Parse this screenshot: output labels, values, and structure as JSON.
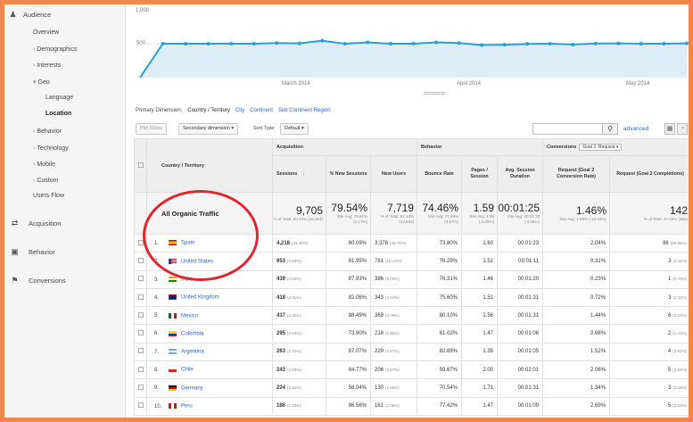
{
  "sidebar": {
    "audience": "Audience",
    "items": {
      "overview": "Overview",
      "demographics": "Demographics",
      "interests": "Interests",
      "geo": "Geo",
      "language": "Language",
      "location": "Location",
      "behavior_sub": "Behavior",
      "technology": "Technology",
      "mobile": "Mobile",
      "custom": "Custom",
      "users_flow": "Users Flow"
    },
    "acquisition": "Acquisition",
    "behavior": "Behavior",
    "conversions": "Conversions"
  },
  "chart_data": {
    "type": "line",
    "ymax_label": "1,000",
    "ymid_label": "500",
    "x_labels": [
      "March 2014",
      "April 2014",
      "May 2014"
    ],
    "values": [
      0,
      500,
      500,
      500,
      500,
      500,
      510,
      505,
      545,
      500,
      520,
      500,
      500,
      520,
      510,
      480,
      485,
      498,
      500,
      488,
      503,
      505,
      500,
      500,
      505
    ],
    "ylim": [
      0,
      1000
    ],
    "color": "#2a9fd6"
  },
  "primary_dimension": {
    "label": "Primary Dimension:",
    "current": "Country / Territory",
    "links": [
      "City",
      "Continent",
      "Sub Continent Region"
    ]
  },
  "toolbar": {
    "plot_rows": "Plot Rows",
    "secondary_dimension": "Secondary dimension",
    "sort_type_label": "Sort Type:",
    "sort_default": "Default",
    "advanced": "advanced"
  },
  "table": {
    "group_acquisition": "Acquisition",
    "group_behavior": "Behavior",
    "group_conversions": "Conversions",
    "goal_select": "Goal 2: Request",
    "col_country": "Country / Territory",
    "col_sessions": "Sessions",
    "col_new_sessions": "% New Sessions",
    "col_new_users": "New Users",
    "col_bounce": "Bounce Rate",
    "col_pages": "Pages / Session",
    "col_duration": "Avg. Session Duration",
    "col_conv_rate": "Request (Goal 2 Conversion Rate)",
    "col_completions": "Request (Goal 2 Completions)",
    "totals": {
      "label": "All Organic Traffic",
      "sessions": "9,705",
      "sessions_sub": "% of Total: 60.42% (16,061)",
      "new_sessions": "79.54%",
      "new_sessions_sub": "Site Avg: 78.61% (1.17%)",
      "new_users": "7,719",
      "new_users_sub": "% of Total: 61.14% (12,626)",
      "bounce": "74.46%",
      "bounce_sub": "Site Avg: 71.69% (3.87%)",
      "pages": "1.59",
      "pages_sub": "Site Avg: 1.66 (-4.05%)",
      "duration": "00:01:25",
      "duration_sub": "Site Avg: 00:01:29 (-3.66%)",
      "conv_rate": "1.46%",
      "conv_rate_sub": "Site Avg: 1.89% (-22.19%)",
      "completions": "142",
      "completions_sub": "% of Total: 47.02% (302)"
    },
    "rows": [
      {
        "n": "1.",
        "country": "Spain",
        "flag": "spain-flag",
        "sessions": "4,218",
        "sessions_pct": "(43.46%)",
        "new_sessions": "80.09%",
        "new_users": "3,378",
        "new_users_pct": "(43.76%)",
        "bounce": "73.80%",
        "pages": "1.60",
        "duration": "00:01:23",
        "conv_rate": "2.04%",
        "completions": "86",
        "completions_pct": "(60.56%)"
      },
      {
        "n": "2.",
        "country": "United States",
        "flag": "us-flag",
        "sessions": "953",
        "sessions_pct": "(9.82%)",
        "new_sessions": "81.95%",
        "new_users": "781",
        "new_users_pct": "(10.12%)",
        "bounce": "76.29%",
        "pages": "1.51",
        "duration": "00:01:11",
        "conv_rate": "0.31%",
        "completions": "3",
        "completions_pct": "(2.11%)"
      },
      {
        "n": "3.",
        "country": "India",
        "flag": "india-flag",
        "sessions": "439",
        "sessions_pct": "(4.52%)",
        "new_sessions": "87.93%",
        "new_users": "386",
        "new_users_pct": "(5.00%)",
        "bounce": "76.31%",
        "pages": "1.46",
        "duration": "00:01:20",
        "conv_rate": "0.23%",
        "completions": "1",
        "completions_pct": "(0.70%)"
      },
      {
        "n": "4.",
        "country": "United Kingdom",
        "flag": "uk-flag",
        "sessions": "418",
        "sessions_pct": "(4.31%)",
        "new_sessions": "82.06%",
        "new_users": "343",
        "new_users_pct": "(4.44%)",
        "bounce": "75.60%",
        "pages": "1.51",
        "duration": "00:01:31",
        "conv_rate": "0.72%",
        "completions": "3",
        "completions_pct": "(2.11%)"
      },
      {
        "n": "5.",
        "country": "Mexico",
        "flag": "mexico-flag",
        "sessions": "417",
        "sessions_pct": "(4.30%)",
        "new_sessions": "88.49%",
        "new_users": "369",
        "new_users_pct": "(4.78%)",
        "bounce": "80.10%",
        "pages": "1.56",
        "duration": "00:01:31",
        "conv_rate": "1.44%",
        "completions": "6",
        "completions_pct": "(4.23%)"
      },
      {
        "n": "6.",
        "country": "Colombia",
        "flag": "colombia-flag",
        "sessions": "295",
        "sessions_pct": "(3.04%)",
        "new_sessions": "73.90%",
        "new_users": "218",
        "new_users_pct": "(2.82%)",
        "bounce": "81.02%",
        "pages": "1.47",
        "duration": "00:01:06",
        "conv_rate": "0.68%",
        "completions": "2",
        "completions_pct": "(1.41%)"
      },
      {
        "n": "7.",
        "country": "Argentina",
        "flag": "argentina-flag",
        "sessions": "263",
        "sessions_pct": "(2.71%)",
        "new_sessions": "87.07%",
        "new_users": "229",
        "new_users_pct": "(2.97%)",
        "bounce": "82.89%",
        "pages": "1.35",
        "duration": "00:01:05",
        "conv_rate": "1.52%",
        "completions": "4",
        "completions_pct": "(2.82%)"
      },
      {
        "n": "8.",
        "country": "Chile",
        "flag": "chile-flag",
        "sessions": "243",
        "sessions_pct": "(2.50%)",
        "new_sessions": "84.77%",
        "new_users": "206",
        "new_users_pct": "(2.67%)",
        "bounce": "59.67%",
        "pages": "2.00",
        "duration": "00:02:01",
        "conv_rate": "2.06%",
        "completions": "5",
        "completions_pct": "(3.52%)"
      },
      {
        "n": "9.",
        "country": "Germany",
        "flag": "germany-flag",
        "sessions": "224",
        "sessions_pct": "(2.31%)",
        "new_sessions": "58.04%",
        "new_users": "130",
        "new_users_pct": "(1.68%)",
        "bounce": "70.54%",
        "pages": "1.71",
        "duration": "00:01:31",
        "conv_rate": "1.34%",
        "completions": "3",
        "completions_pct": "(2.11%)"
      },
      {
        "n": "10.",
        "country": "Peru",
        "flag": "peru-flag",
        "sessions": "186",
        "sessions_pct": "(1.92%)",
        "new_sessions": "86.56%",
        "new_users": "161",
        "new_users_pct": "(2.09%)",
        "bounce": "77.42%",
        "pages": "1.47",
        "duration": "00:01:09",
        "conv_rate": "2.69%",
        "completions": "5",
        "completions_pct": "(3.52%)"
      }
    ]
  }
}
